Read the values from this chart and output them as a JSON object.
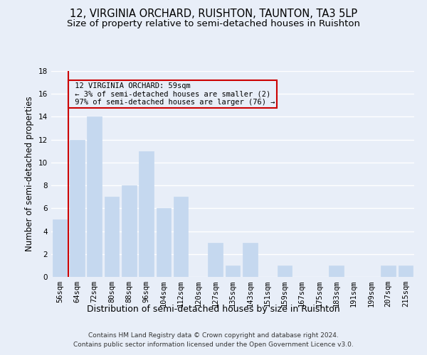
{
  "title": "12, VIRGINIA ORCHARD, RUISHTON, TAUNTON, TA3 5LP",
  "subtitle": "Size of property relative to semi-detached houses in Ruishton",
  "xlabel": "Distribution of semi-detached houses by size in Ruishton",
  "ylabel": "Number of semi-detached properties",
  "footer_line1": "Contains HM Land Registry data © Crown copyright and database right 2024.",
  "footer_line2": "Contains public sector information licensed under the Open Government Licence v3.0.",
  "categories": [
    "56sqm",
    "64sqm",
    "72sqm",
    "80sqm",
    "88sqm",
    "96sqm",
    "104sqm",
    "112sqm",
    "120sqm",
    "127sqm",
    "135sqm",
    "143sqm",
    "151sqm",
    "159sqm",
    "167sqm",
    "175sqm",
    "183sqm",
    "191sqm",
    "199sqm",
    "207sqm",
    "215sqm"
  ],
  "values": [
    5,
    12,
    14,
    7,
    8,
    11,
    6,
    7,
    0,
    3,
    1,
    3,
    0,
    1,
    0,
    0,
    1,
    0,
    0,
    1,
    1
  ],
  "bar_color": "#c5d8ef",
  "subject_label": "12 VIRGINIA ORCHARD: 59sqm",
  "pct_smaller": 3,
  "n_smaller": 2,
  "pct_larger": 97,
  "n_larger": 76,
  "annotation_box_color": "#cc0000",
  "ylim": [
    0,
    18
  ],
  "yticks": [
    0,
    2,
    4,
    6,
    8,
    10,
    12,
    14,
    16,
    18
  ],
  "background_color": "#e8eef8",
  "grid_color": "#ffffff",
  "title_fontsize": 10.5,
  "subtitle_fontsize": 9.5,
  "xlabel_fontsize": 9,
  "ylabel_fontsize": 8.5,
  "tick_fontsize": 7.5,
  "annotation_fontsize": 7.5,
  "footer_fontsize": 6.5
}
